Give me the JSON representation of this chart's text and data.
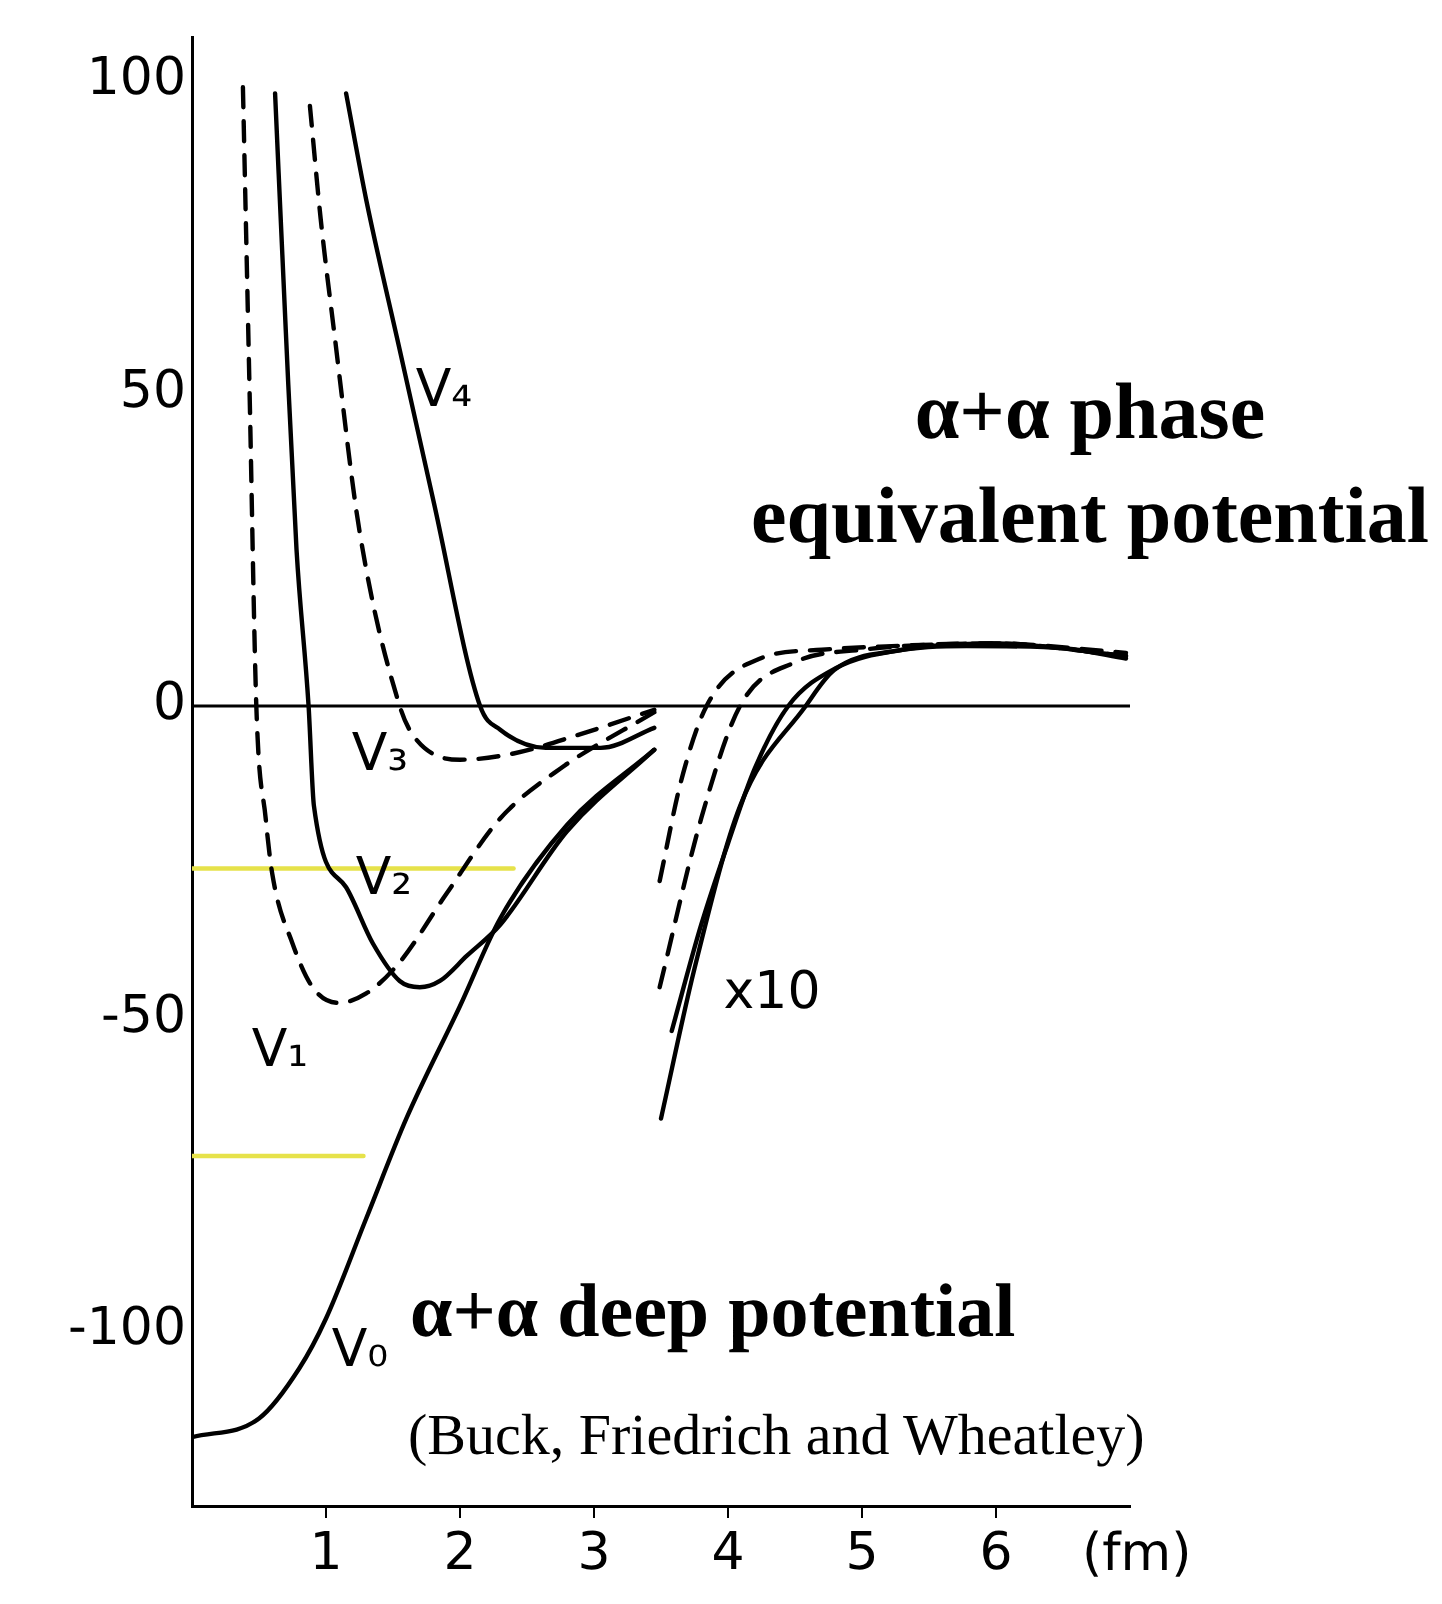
{
  "chart_data": {
    "type": "line",
    "xlabel": "(fm)",
    "xlim": [
      0,
      7
    ],
    "ylim": [
      -128,
      107
    ],
    "xticks": [
      1,
      2,
      3,
      4,
      5,
      6
    ],
    "yticks": [
      -100,
      -50,
      0,
      50,
      100
    ],
    "grid": false,
    "legend": false,
    "marker": "none",
    "ref_lines": [
      {
        "axis": "y",
        "value": 0,
        "color": "#000000"
      }
    ],
    "series": [
      {
        "name": "V₀",
        "color": "#000000",
        "line_style": "solid",
        "x": [
          0,
          0.5,
          0.8,
          1.0,
          1.3,
          1.6,
          2.0,
          2.3,
          2.8,
          3.45
        ],
        "values": [
          -117,
          -114,
          -106,
          -98,
          -82,
          -66,
          -48,
          -34,
          -19,
          -7
        ]
      },
      {
        "name": "V₁",
        "color": "#000000",
        "line_style": "dashed",
        "x": [
          0.38,
          0.43,
          0.48,
          0.55,
          0.6,
          0.75,
          0.9,
          1.09,
          1.3,
          1.55,
          1.9,
          2.3,
          2.75,
          3.45
        ],
        "values": [
          99,
          50,
          0,
          -18,
          -27,
          -38,
          -45,
          -47.5,
          -46,
          -41,
          -30,
          -18,
          -10,
          -1
        ]
      },
      {
        "name": "V₂",
        "color": "#000000",
        "line_style": "solid",
        "x": [
          0.62,
          0.7,
          0.78,
          0.87,
          0.91,
          1.15,
          1.35,
          1.55,
          1.7,
          1.85,
          2.05,
          2.3,
          2.8,
          3.45
        ],
        "values": [
          98,
          60,
          25,
          0,
          -16,
          -29,
          -38,
          -44,
          -45,
          -44,
          -40,
          -35,
          -20,
          -7
        ]
      },
      {
        "name": "V₃",
        "color": "#000000",
        "line_style": "dashed",
        "x": [
          0.88,
          0.96,
          1.06,
          1.25,
          1.55,
          1.66,
          2.0,
          2.4,
          2.9,
          3.45
        ],
        "values": [
          96,
          78,
          60,
          28,
          0,
          -5,
          -8.6,
          -7.6,
          -4.5,
          -0.6
        ]
      },
      {
        "name": "V₄",
        "color": "#000000",
        "line_style": "solid",
        "x": [
          1.15,
          1.3,
          1.55,
          1.8,
          2.15,
          2.3,
          2.64,
          3.05,
          3.45
        ],
        "values": [
          98,
          81,
          57,
          33,
          0,
          -3.8,
          -6.7,
          -6.7,
          -3.5
        ]
      },
      {
        "color": "#000000",
        "line_style": "solid",
        "x": [
          3.5,
          3.75,
          4.09,
          4.58,
          4.79,
          5.28,
          5.78,
          6.52,
          6.97
        ],
        "values": [
          -66,
          -42,
          -16,
          0,
          5.7,
          8.9,
          9.6,
          9.2,
          7.6
        ]
      },
      {
        "color": "#000000",
        "line_style": "solid",
        "x": [
          3.58,
          3.8,
          4.0,
          4.2,
          4.45,
          4.8,
          5.3,
          6.0,
          6.97
        ],
        "values": [
          -52,
          -35,
          -22,
          -10,
          0,
          6,
          9,
          10,
          8
        ]
      },
      {
        "color": "#000000",
        "line_style": "dashed",
        "x": [
          3.49,
          3.65,
          3.84,
          4.24,
          4.7,
          5.13,
          6.0,
          6.97
        ],
        "values": [
          -28,
          -12,
          0,
          7.6,
          9,
          9.5,
          10,
          8.5
        ]
      },
      {
        "color": "#000000",
        "line_style": "dashed",
        "x": [
          3.49,
          3.8,
          4.09,
          4.5,
          5.0,
          6.0,
          6.97
        ],
        "values": [
          -45,
          -18,
          0,
          7,
          9,
          10,
          8
        ]
      },
      {
        "color": "#e6e24a",
        "line_style": "solid",
        "x": [
          0,
          2.4
        ],
        "values": [
          -26,
          -26
        ]
      },
      {
        "color": "#e6e24a",
        "line_style": "solid",
        "x": [
          0,
          1.28
        ],
        "values": [
          -72,
          -72
        ]
      }
    ],
    "annotations": [
      "α+α phase equivalent potential",
      "α+α deep potential",
      "(Buck, Friedrich and Wheatley)",
      "x10"
    ]
  }
}
